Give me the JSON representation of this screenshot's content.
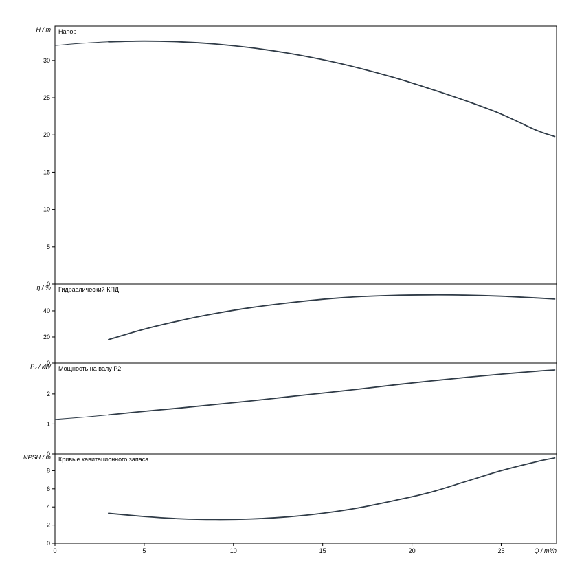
{
  "page": {
    "background": "#ffffff"
  },
  "axes": {
    "xlabel": "Q / m³/h",
    "xticks": [
      0,
      5,
      10,
      15,
      20,
      25
    ],
    "xlim": [
      0,
      28.1
    ],
    "axis_color": "#000000",
    "curve_color": "#2f3b47",
    "grid": false,
    "legend": "none"
  },
  "chart_data": [
    {
      "type": "line",
      "title": "Напор",
      "ylabel": "H / m",
      "ylim": [
        0,
        34.6
      ],
      "yticks": [
        0,
        5,
        10,
        15,
        20,
        25,
        30
      ],
      "x": [
        0,
        1.5,
        3,
        5,
        7,
        9,
        11,
        13,
        15,
        17,
        19,
        21,
        23,
        25,
        27,
        28
      ],
      "y": [
        32.0,
        32.3,
        32.5,
        32.6,
        32.5,
        32.2,
        31.7,
        31.0,
        30.1,
        29.0,
        27.7,
        26.2,
        24.6,
        22.8,
        20.6,
        19.8
      ]
    },
    {
      "type": "line",
      "title": "Гидравлический КПД",
      "ylabel": "η / %",
      "ylim": [
        0,
        60.5
      ],
      "yticks": [
        0,
        20,
        40
      ],
      "x": [
        3,
        5,
        7,
        9,
        11,
        13,
        15,
        17,
        19,
        21,
        23,
        25,
        27,
        28
      ],
      "y": [
        18,
        26,
        32.5,
        38,
        42.5,
        46,
        48.8,
        50.8,
        51.8,
        52.2,
        52.0,
        51.2,
        49.8,
        49.0
      ]
    },
    {
      "type": "line",
      "title": "Мощность на валу P2",
      "ylabel": "P₂ / kW",
      "ylim": [
        0,
        3.03
      ],
      "yticks": [
        0,
        1,
        2
      ],
      "x": [
        0,
        1.5,
        3,
        5,
        7,
        9,
        11,
        13,
        15,
        17,
        19,
        21,
        23,
        25,
        27,
        28
      ],
      "y": [
        1.15,
        1.22,
        1.3,
        1.42,
        1.53,
        1.65,
        1.77,
        1.9,
        2.03,
        2.16,
        2.3,
        2.43,
        2.55,
        2.66,
        2.76,
        2.8
      ]
    },
    {
      "type": "line",
      "title": "Кривые кавитационного запаса",
      "ylabel": "NPSH / m",
      "ylim": [
        0,
        9.85
      ],
      "yticks": [
        0,
        2,
        4,
        6,
        8
      ],
      "x": [
        3,
        5,
        7,
        9,
        11,
        13,
        15,
        17,
        19,
        21,
        23,
        25,
        27,
        28
      ],
      "y": [
        3.3,
        2.95,
        2.7,
        2.62,
        2.68,
        2.9,
        3.3,
        3.9,
        4.7,
        5.6,
        6.8,
        8.0,
        9.0,
        9.4
      ]
    }
  ]
}
